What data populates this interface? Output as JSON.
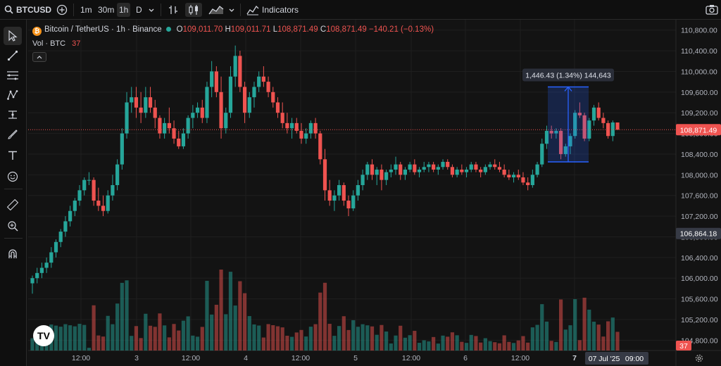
{
  "toolbar": {
    "symbol": "BTCUSD",
    "intervals": [
      "1m",
      "30m",
      "1h",
      "D"
    ],
    "indicators_label": "Indicators"
  },
  "legend": {
    "title": "Bitcoin / TetherUS · 1h · Binance",
    "o_label": "O",
    "o": "109,011.70",
    "h_label": "H",
    "h": "109,011.71",
    "l_label": "L",
    "l": "108,871.49",
    "c_label": "C",
    "c": "108,871.49",
    "change": "−140.21 (−0.13%)",
    "vol_label": "Vol · BTC",
    "vol": "37"
  },
  "price_axis": {
    "ticks": [
      "110,800.00",
      "110,400.00",
      "110,000.00",
      "109,600.00",
      "109,200.00",
      "108,800.00",
      "108,400.00",
      "108,000.00",
      "107,600.00",
      "107,200.00",
      "106,800.00",
      "106,400.00",
      "106,000.00",
      "105,600.00",
      "105,200.00",
      "104,800.00"
    ],
    "current_price": "108,871.49",
    "crosshair_price": "106,864.18",
    "volume_badge": "37"
  },
  "time_axis": {
    "ticks": [
      "12:00",
      "3",
      "12:00",
      "4",
      "12:00",
      "5",
      "12:00",
      "6",
      "12:00",
      "7"
    ],
    "hover_label": "07 Jul '25",
    "hover_time": "09:00"
  },
  "measure": {
    "label": "1,446.43 (1.34%) 144,643"
  },
  "colors": {
    "up": "#26a69a",
    "down": "#ef5350",
    "bg": "#131313",
    "grid": "#1f1f1f",
    "measure": "#2962ff"
  },
  "chart_data": {
    "type": "candlestick",
    "interval": "1h",
    "ylim": [
      104600,
      111000
    ],
    "candles": [
      [
        105900,
        106050,
        105700,
        106000
      ],
      [
        106000,
        106200,
        105900,
        106100
      ],
      [
        106100,
        106300,
        106000,
        106200
      ],
      [
        106200,
        106400,
        106100,
        106300
      ],
      [
        106300,
        106600,
        106200,
        106500
      ],
      [
        106500,
        106750,
        106400,
        106700
      ],
      [
        106700,
        106950,
        106600,
        106900
      ],
      [
        106900,
        107200,
        106800,
        107100
      ],
      [
        107100,
        107400,
        107000,
        107300
      ],
      [
        107300,
        107550,
        107200,
        107500
      ],
      [
        107500,
        107800,
        107400,
        107700
      ],
      [
        107700,
        107950,
        107600,
        107900
      ],
      [
        107900,
        108050,
        107800,
        107900
      ],
      [
        107900,
        107950,
        107400,
        107500
      ],
      [
        107500,
        107750,
        107300,
        107400
      ],
      [
        107400,
        107600,
        107200,
        107300
      ],
      [
        107300,
        107700,
        107250,
        107600
      ],
      [
        107600,
        108000,
        107500,
        107800
      ],
      [
        107800,
        108300,
        107700,
        108200
      ],
      [
        108200,
        108900,
        108100,
        108800
      ],
      [
        108800,
        109600,
        108700,
        109400
      ],
      [
        109400,
        109700,
        109200,
        109500
      ],
      [
        109500,
        109700,
        109100,
        109300
      ],
      [
        109300,
        109600,
        109000,
        109200
      ],
      [
        109200,
        109700,
        109100,
        109500
      ],
      [
        109500,
        109700,
        109200,
        109300
      ],
      [
        109300,
        109450,
        108900,
        109100
      ],
      [
        109100,
        109150,
        108700,
        108800
      ],
      [
        108800,
        109100,
        108700,
        109000
      ],
      [
        109000,
        109300,
        108800,
        108900
      ],
      [
        108900,
        109050,
        108600,
        108700
      ],
      [
        108700,
        108850,
        108500,
        108550
      ],
      [
        108550,
        108900,
        108500,
        108800
      ],
      [
        108800,
        109150,
        108700,
        109100
      ],
      [
        109100,
        109350,
        108900,
        109200
      ],
      [
        109200,
        109400,
        109100,
        109300
      ],
      [
        109300,
        109450,
        109000,
        109100
      ],
      [
        109100,
        109800,
        109000,
        109700
      ],
      [
        109700,
        110200,
        109500,
        110000
      ],
      [
        110000,
        110100,
        109500,
        109600
      ],
      [
        109600,
        109900,
        108700,
        108900
      ],
      [
        108900,
        109300,
        108800,
        109200
      ],
      [
        109200,
        110100,
        109100,
        109900
      ],
      [
        109900,
        110500,
        109700,
        110300
      ],
      [
        110300,
        110400,
        109600,
        109700
      ],
      [
        109700,
        109800,
        109000,
        109200
      ],
      [
        109200,
        109600,
        109100,
        109500
      ],
      [
        109500,
        109800,
        109300,
        109700
      ],
      [
        109700,
        110000,
        109600,
        109900
      ],
      [
        109900,
        110100,
        109700,
        109800
      ],
      [
        109800,
        109900,
        109500,
        109600
      ],
      [
        109600,
        109700,
        109300,
        109400
      ],
      [
        109400,
        109500,
        109100,
        109200
      ],
      [
        109200,
        109400,
        108900,
        109000
      ],
      [
        109000,
        109200,
        108800,
        108900
      ],
      [
        108900,
        109100,
        108700,
        109000
      ],
      [
        109000,
        109100,
        108800,
        108850
      ],
      [
        108850,
        109000,
        108600,
        108700
      ],
      [
        108700,
        108900,
        108600,
        108800
      ],
      [
        108800,
        109050,
        108700,
        109000
      ],
      [
        109000,
        109100,
        108700,
        108800
      ],
      [
        108800,
        108850,
        108200,
        108300
      ],
      [
        108300,
        108500,
        107500,
        107700
      ],
      [
        107700,
        107900,
        107400,
        107500
      ],
      [
        107500,
        107700,
        107300,
        107600
      ],
      [
        107600,
        107900,
        107500,
        107800
      ],
      [
        107800,
        107850,
        107400,
        107500
      ],
      [
        107500,
        107600,
        107200,
        107350
      ],
      [
        107350,
        107700,
        107300,
        107600
      ],
      [
        107600,
        107900,
        107500,
        107800
      ],
      [
        107800,
        108100,
        107700,
        108000
      ],
      [
        108000,
        108250,
        107900,
        108200
      ],
      [
        108200,
        108300,
        107900,
        108000
      ],
      [
        108000,
        108150,
        107800,
        108100
      ],
      [
        108100,
        108200,
        107700,
        107900
      ],
      [
        107900,
        108100,
        107800,
        108050
      ],
      [
        108050,
        108200,
        107950,
        108100
      ],
      [
        108100,
        108350,
        108000,
        108200
      ],
      [
        108200,
        108250,
        107900,
        108000
      ],
      [
        108000,
        108150,
        107900,
        108100
      ],
      [
        108100,
        108250,
        108050,
        108200
      ],
      [
        108200,
        108300,
        108000,
        108050
      ],
      [
        108050,
        108150,
        107950,
        108100
      ],
      [
        108100,
        108250,
        108050,
        108150
      ],
      [
        108150,
        108250,
        108050,
        108200
      ],
      [
        108200,
        108250,
        108050,
        108100
      ],
      [
        108100,
        108200,
        108000,
        108150
      ],
      [
        108150,
        108300,
        108100,
        108250
      ],
      [
        108250,
        108300,
        108100,
        108150
      ],
      [
        108150,
        108200,
        107950,
        108000
      ],
      [
        108000,
        108150,
        107950,
        108100
      ],
      [
        108100,
        108200,
        108000,
        108050
      ],
      [
        108050,
        108150,
        107950,
        108100
      ],
      [
        108100,
        108250,
        108050,
        108200
      ],
      [
        108200,
        108250,
        108050,
        108100
      ],
      [
        108100,
        108150,
        107950,
        108050
      ],
      [
        108050,
        108200,
        108000,
        108150
      ],
      [
        108150,
        108250,
        108100,
        108200
      ],
      [
        108200,
        108300,
        108100,
        108150
      ],
      [
        108150,
        108250,
        108050,
        108100
      ],
      [
        108100,
        108200,
        107950,
        108000
      ],
      [
        108000,
        108100,
        107900,
        107950
      ],
      [
        107950,
        108050,
        107850,
        108000
      ],
      [
        108000,
        108100,
        107900,
        107950
      ],
      [
        107950,
        108050,
        107800,
        107850
      ],
      [
        107850,
        107950,
        107700,
        107800
      ],
      [
        107800,
        108100,
        107750,
        108000
      ],
      [
        108000,
        108250,
        107950,
        108200
      ],
      [
        108200,
        108700,
        108150,
        108600
      ],
      [
        108600,
        108950,
        108500,
        108850
      ],
      [
        108850,
        108950,
        108700,
        108800
      ],
      [
        108800,
        108900,
        108700,
        108850
      ],
      [
        108850,
        108900,
        108300,
        108400
      ],
      [
        108400,
        108600,
        108350,
        108550
      ],
      [
        108550,
        108800,
        108400,
        108750
      ],
      [
        108750,
        109250,
        108700,
        109200
      ],
      [
        109200,
        109400,
        109100,
        109150
      ],
      [
        109150,
        109200,
        108650,
        108700
      ],
      [
        108700,
        109100,
        108650,
        109050
      ],
      [
        109050,
        109350,
        108950,
        109300
      ],
      [
        109300,
        109400,
        109050,
        109100
      ],
      [
        109100,
        109200,
        108900,
        109000
      ],
      [
        109000,
        109050,
        108700,
        108750
      ],
      [
        108750,
        109050,
        108650,
        109011.7
      ],
      [
        109011.7,
        109011.71,
        108871.49,
        108871.49
      ]
    ],
    "volume_unit": "BTC",
    "series": [
      {
        "name": "Vol · BTC",
        "last": 37
      }
    ]
  }
}
